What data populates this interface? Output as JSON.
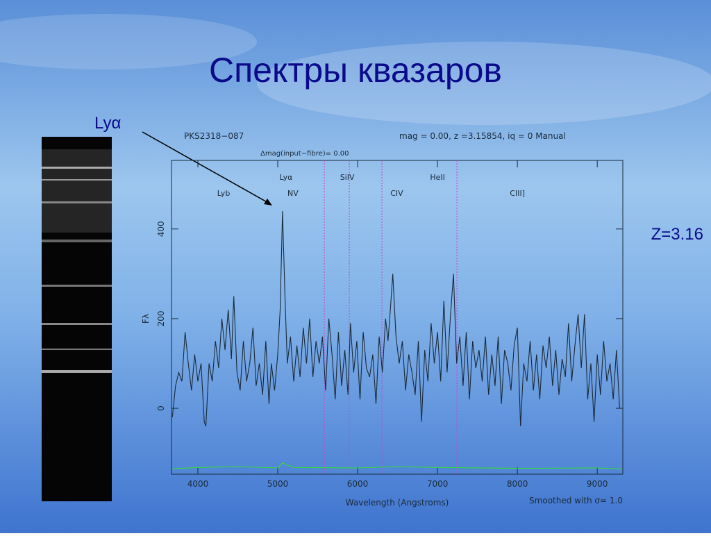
{
  "slide": {
    "title": "Спектры квазаров",
    "pointer_label": "Lyα",
    "redshift_label": "Z=3.16"
  },
  "chart_data": {
    "type": "line",
    "title": "PKS2318−087",
    "subtitle": "mag =  0.00, z =3.15854, iq =  0 Manual",
    "note": "Δmag(input−fibre)=   0.00",
    "xlabel": "Wavelength (Angstroms)",
    "ylabel": "Fλ",
    "smoothing": "Smoothed with σ= 1.0",
    "xlim": [
      3670,
      9320
    ],
    "ylim": [
      -147,
      553
    ],
    "xticks": [
      4000,
      5000,
      6000,
      7000,
      8000,
      9000
    ],
    "yticks": [
      0,
      200,
      400
    ],
    "line_marks": {
      "color": "#d040d0",
      "x": [
        5583,
        5896,
        6304,
        7243
      ]
    },
    "annotations": [
      {
        "text": "Lyb",
        "x": 4322,
        "y": 474
      },
      {
        "text": "Lyα",
        "x": 5104,
        "y": 510
      },
      {
        "text": "NV",
        "x": 5190,
        "y": 474
      },
      {
        "text": "SiIV",
        "x": 5870,
        "y": 510
      },
      {
        "text": "CIV",
        "x": 6490,
        "y": 474
      },
      {
        "text": "HeII",
        "x": 7000,
        "y": 510
      },
      {
        "text": "CIII]",
        "x": 8000,
        "y": 474
      }
    ],
    "series": [
      {
        "color": "#1a2a3a",
        "x": [
          3680,
          3720,
          3760,
          3800,
          3840,
          3880,
          3920,
          3960,
          4000,
          4040,
          4080,
          4100,
          4140,
          4180,
          4220,
          4260,
          4300,
          4340,
          4380,
          4420,
          4450,
          4490,
          4530,
          4570,
          4610,
          4650,
          4690,
          4730,
          4770,
          4810,
          4850,
          4890,
          4920,
          4960,
          5000,
          5030,
          5060,
          5090,
          5120,
          5160,
          5200,
          5240,
          5280,
          5320,
          5360,
          5400,
          5440,
          5480,
          5520,
          5560,
          5600,
          5640,
          5680,
          5720,
          5760,
          5800,
          5840,
          5880,
          5910,
          5950,
          5990,
          6030,
          6070,
          6110,
          6150,
          6190,
          6230,
          6270,
          6310,
          6350,
          6380,
          6410,
          6440,
          6480,
          6520,
          6560,
          6600,
          6640,
          6680,
          6720,
          6760,
          6800,
          6840,
          6880,
          6920,
          6960,
          7000,
          7040,
          7080,
          7120,
          7160,
          7200,
          7240,
          7280,
          7320,
          7360,
          7400,
          7440,
          7480,
          7520,
          7560,
          7600,
          7640,
          7680,
          7720,
          7760,
          7800,
          7840,
          7880,
          7920,
          7960,
          8000,
          8040,
          8080,
          8120,
          8160,
          8200,
          8240,
          8280,
          8320,
          8360,
          8400,
          8440,
          8480,
          8520,
          8560,
          8600,
          8640,
          8680,
          8720,
          8760,
          8800,
          8840,
          8880,
          8920,
          8960,
          9000,
          9040,
          9080,
          9120,
          9160,
          9200,
          9240,
          9280
        ],
        "values": [
          -20,
          50,
          80,
          60,
          170,
          100,
          40,
          120,
          60,
          100,
          -30,
          -40,
          100,
          60,
          150,
          90,
          200,
          130,
          220,
          110,
          250,
          80,
          40,
          150,
          60,
          100,
          180,
          50,
          100,
          30,
          150,
          10,
          100,
          40,
          120,
          220,
          440,
          250,
          100,
          160,
          60,
          140,
          70,
          180,
          100,
          200,
          70,
          150,
          100,
          160,
          40,
          200,
          120,
          20,
          170,
          50,
          130,
          30,
          190,
          80,
          150,
          20,
          170,
          90,
          70,
          120,
          10,
          160,
          80,
          200,
          150,
          220,
          300,
          160,
          100,
          150,
          40,
          120,
          80,
          30,
          150,
          -30,
          130,
          60,
          190,
          100,
          170,
          60,
          240,
          80,
          200,
          300,
          100,
          160,
          50,
          170,
          20,
          150,
          90,
          130,
          60,
          160,
          30,
          120,
          50,
          160,
          10,
          130,
          100,
          40,
          140,
          180,
          -40,
          100,
          60,
          150,
          40,
          120,
          20,
          140,
          90,
          160,
          50,
          130,
          30,
          110,
          70,
          190,
          60,
          140,
          210,
          90,
          210,
          20,
          100,
          -30,
          120,
          30,
          150,
          60,
          100,
          20,
          130,
          0
        ]
      },
      {
        "color": "#33dd33",
        "x": [
          3680,
          4000,
          4500,
          5000,
          5060,
          5200,
          6000,
          6500,
          7000,
          8000,
          9000,
          9300
        ],
        "values": [
          -135,
          -132,
          -130,
          -133,
          -122,
          -132,
          -133,
          -130,
          -132,
          -134,
          -133,
          -135
        ]
      }
    ]
  }
}
